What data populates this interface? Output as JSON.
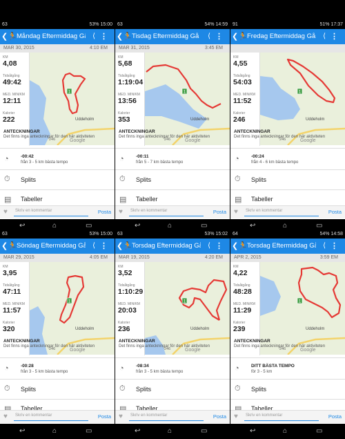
{
  "labels": {
    "km": "KM",
    "time": "Tidsåtgång",
    "pace": "MED. MIN/KM",
    "cal": "Kalorier",
    "notes_title": "ANTECKNINGAR",
    "notes_text": "Det finns inga anteckningar för den här aktiviteten",
    "splits": "Splits",
    "tables": "Tabeller",
    "comment_placeholder": "Skriv en kommentar",
    "post": "Posta",
    "map_brand": "Google",
    "map_town": "Uddeholm",
    "road": "246",
    "checkpoint": "1"
  },
  "colors": {
    "appbar": "#1e88e5",
    "route": "#e53935",
    "water": "#a6c8ee",
    "land": "#eaf0dc"
  },
  "panels": [
    {
      "status": {
        "left": "63",
        "right": "53% 15:00"
      },
      "title": "Måndag Eftermiddag Gå",
      "date": "MAR 30, 2015",
      "time": "4:10 EM",
      "km": "4,08",
      "duration": "49:42",
      "pace": "12:11",
      "cal": "222",
      "tempo_value": "-00:42",
      "tempo_sub": "från 3 - 5 km bästa tempo"
    },
    {
      "status": {
        "left": "63",
        "right": "54% 14:59"
      },
      "title": "Tisdag Eftermiddag Gå",
      "date": "MAR 31, 2015",
      "time": "3:45 EM",
      "km": "5,68",
      "duration": "1:19:04",
      "pace": "13:56",
      "cal": "353",
      "tempo_value": "-00:11",
      "tempo_sub": "från 5 - 7 km bästa tempo"
    },
    {
      "status": {
        "left": "91",
        "right": "51% 17:37"
      },
      "title": "Fredag Eftermiddag Gå",
      "date": "",
      "time": "",
      "km": "4,55",
      "duration": "54:03",
      "pace": "11:52",
      "cal": "246",
      "tempo_value": "-00:24",
      "tempo_sub": "från 4 - 6 km bästa tempo"
    },
    {
      "status": {
        "left": "63",
        "right": "53% 15:00"
      },
      "title": "Söndag Eftermiddag Gå",
      "date": "MAR 29, 2015",
      "time": "4:05 EM",
      "km": "3,95",
      "duration": "47:11",
      "pace": "11:57",
      "cal": "320",
      "tempo_value": "-00:28",
      "tempo_sub": "från 3 - 5 km bästa tempo"
    },
    {
      "status": {
        "left": "63",
        "right": "53% 15:02"
      },
      "title": "Torsdag Eftermiddag Gå",
      "date": "MAR 19, 2015",
      "time": "4:20 EM",
      "km": "3,52",
      "duration": "1:10:29",
      "pace": "20:03",
      "cal": "236",
      "tempo_value": "-08:34",
      "tempo_sub": "från 3 - 5 km bästa tempo"
    },
    {
      "status": {
        "left": "64",
        "right": "54% 14:58"
      },
      "title": "Torsdag Eftermiddag Gå",
      "date": "APR 2, 2015",
      "time": "3:59 EM",
      "km": "4,22",
      "duration": "48:28",
      "pace": "11:29",
      "cal": "239",
      "tempo_value": "DITT BÄSTA TEMPO",
      "tempo_sub": "för 3 - 5 km"
    }
  ]
}
